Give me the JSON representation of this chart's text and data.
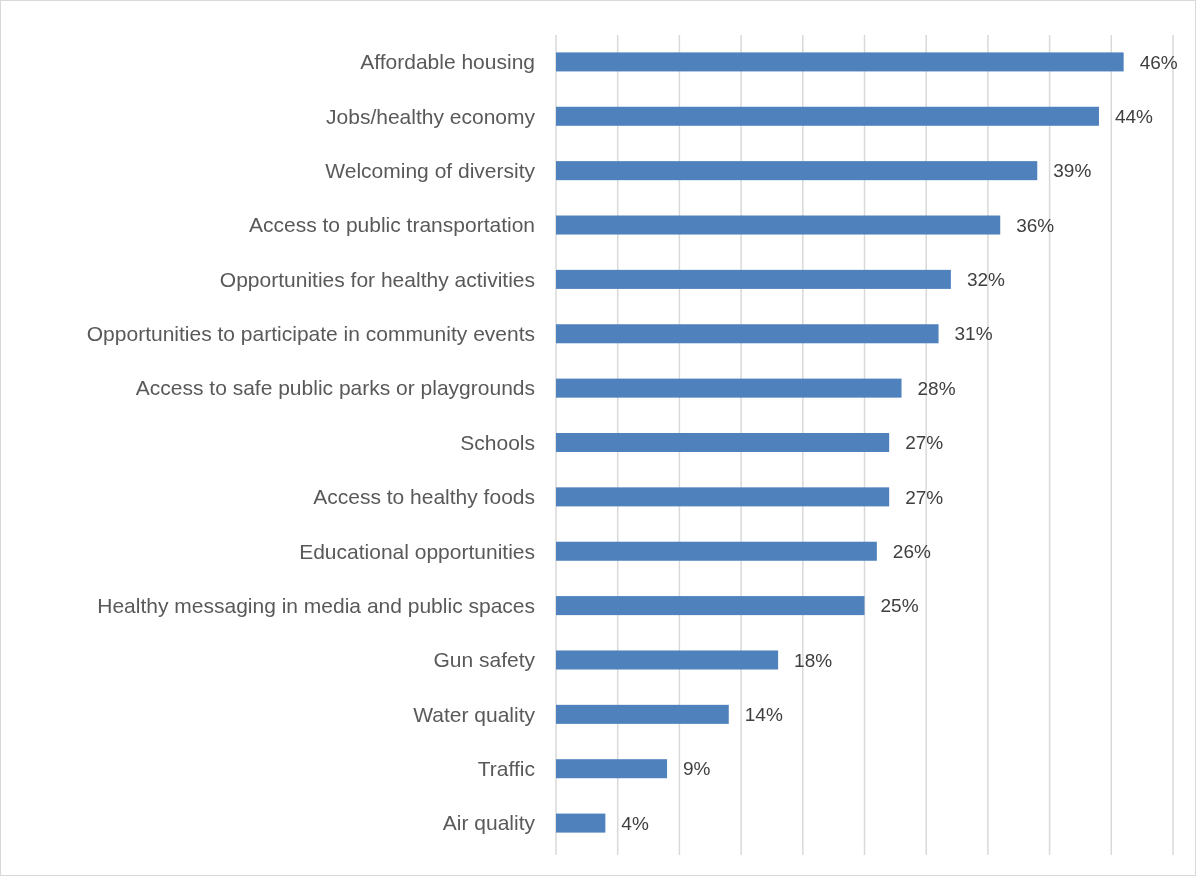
{
  "chart_data": {
    "type": "bar",
    "orientation": "horizontal",
    "categories": [
      "Affordable housing",
      "Jobs/healthy economy",
      "Welcoming of diversity",
      "Access to public transportation",
      "Opportunities for healthy activities",
      "Opportunities to participate in community events",
      "Access to safe public parks or playgrounds",
      "Schools",
      "Access to healthy foods",
      "Educational opportunities",
      "Healthy messaging in media and public spaces",
      "Gun safety",
      "Water quality",
      "Traffic",
      "Air quality"
    ],
    "values": [
      46,
      44,
      39,
      36,
      32,
      31,
      28,
      27,
      27,
      26,
      25,
      18,
      14,
      9,
      4
    ],
    "value_labels": [
      "46%",
      "44%",
      "39%",
      "36%",
      "32%",
      "31%",
      "28%",
      "27%",
      "27%",
      "26%",
      "25%",
      "18%",
      "14%",
      "9%",
      "4%"
    ],
    "color": "#4f81bd",
    "xlim": [
      0,
      50
    ],
    "xticks": [
      {
        "value": 0,
        "label": null
      },
      {
        "value": 5,
        "label": null
      },
      {
        "value": 10,
        "label": null
      },
      {
        "value": 15,
        "label": null
      },
      {
        "value": 20,
        "label": null
      },
      {
        "value": 25,
        "label": null
      },
      {
        "value": 30,
        "label": null
      },
      {
        "value": 35,
        "label": null
      },
      {
        "value": 40,
        "label": null
      },
      {
        "value": 45,
        "label": null
      },
      {
        "value": 50,
        "label": null
      }
    ],
    "grid": "x",
    "tick_labels": "y"
  }
}
